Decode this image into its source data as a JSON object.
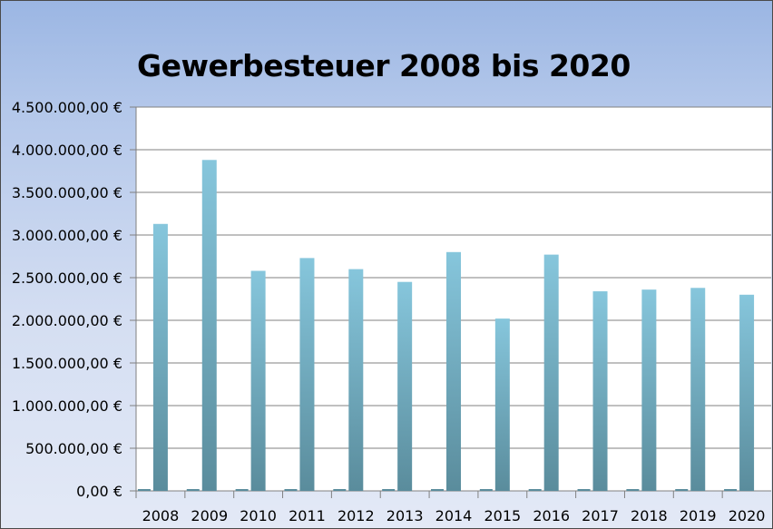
{
  "chart_data": {
    "type": "bar",
    "title": "Gewerbesteuer 2008 bis 2020",
    "xlabel": "",
    "ylabel": "",
    "categories": [
      "2008",
      "2009",
      "2010",
      "2011",
      "2012",
      "2013",
      "2014",
      "2015",
      "2016",
      "2017",
      "2018",
      "2019",
      "2020"
    ],
    "series": [
      {
        "values": [
          3130000,
          3880000,
          2580000,
          2730000,
          2600000,
          2450000,
          2800000,
          2020000,
          2770000,
          2340000,
          2360000,
          2380000,
          2300000
        ]
      }
    ],
    "ylim": [
      0,
      4500000
    ],
    "y_ticks": [
      0,
      500000,
      1000000,
      1500000,
      2000000,
      2500000,
      3000000,
      3500000,
      4000000,
      4500000
    ],
    "y_tick_labels": [
      "0,00 €",
      "500.000,00 €",
      "1.000.000,00 €",
      "1.500.000,00 €",
      "2.000.000,00 €",
      "2.500.000,00 €",
      "3.000.000,00 €",
      "3.500.000,00 €",
      "4.000.000,00 €",
      "4.500.000,00 €"
    ],
    "grid": true,
    "legend": "none",
    "colors": {
      "bar_top": "#86c6dc",
      "bar_bottom": "#5a8c9c",
      "gridline": "#808080",
      "plot_bg": "#ffffff"
    }
  }
}
